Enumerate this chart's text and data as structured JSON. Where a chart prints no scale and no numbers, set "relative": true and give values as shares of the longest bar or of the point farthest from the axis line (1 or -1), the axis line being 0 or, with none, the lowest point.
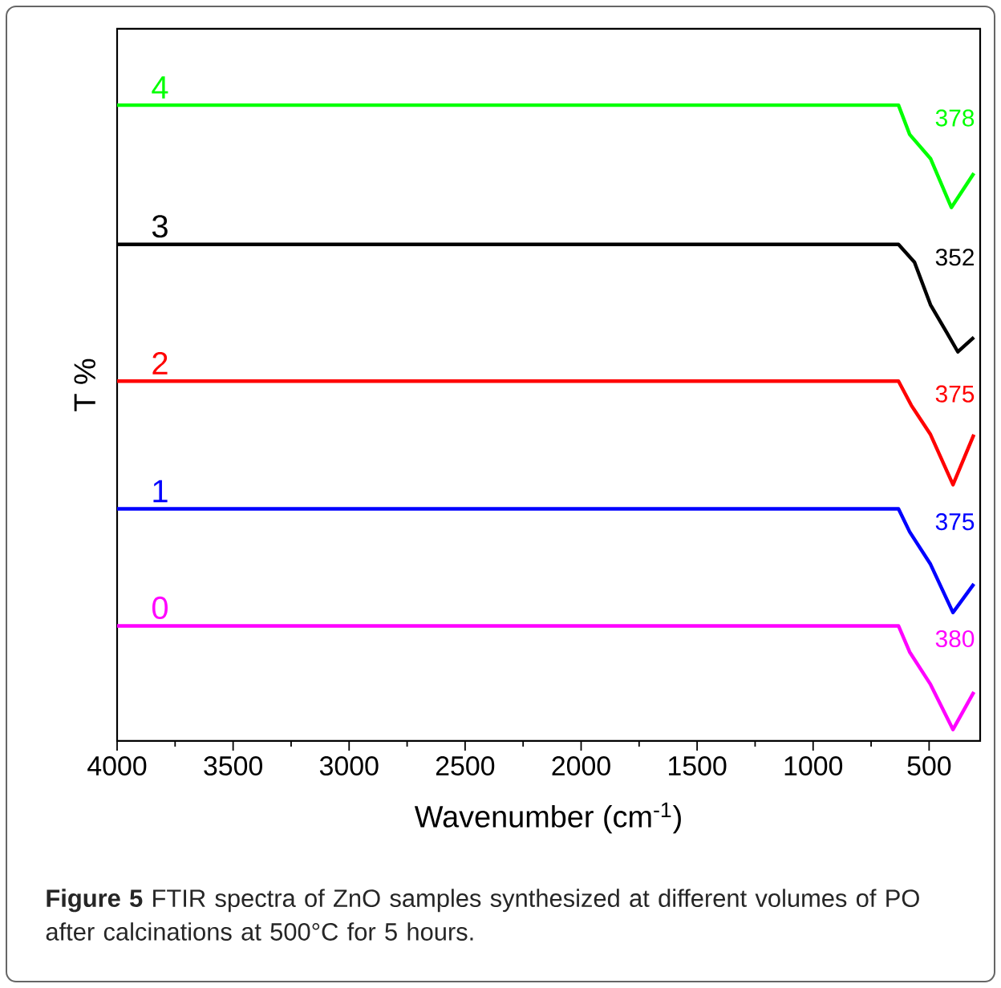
{
  "chart_data": {
    "type": "line",
    "xlabel": "Wavenumber (cm$^{-1}$)",
    "ylabel": "T %",
    "relative": true,
    "xlim": [
      4000,
      280
    ],
    "xticks": [
      4000,
      3500,
      3000,
      2500,
      2000,
      1500,
      1000,
      500
    ],
    "series": [
      {
        "name": "4",
        "color": "#00ff00",
        "x": [
          4000,
          632,
          584,
          494,
          404,
          307
        ],
        "values": [
          1.0,
          1.0,
          0.954,
          0.916,
          0.839,
          0.893
        ]
      },
      {
        "name": "3",
        "color": "#000000",
        "x": [
          4000,
          632,
          563,
          494,
          425,
          376,
          307
        ],
        "values": [
          0.781,
          0.781,
          0.753,
          0.686,
          0.643,
          0.612,
          0.635
        ]
      },
      {
        "name": "2",
        "color": "#ff0000",
        "x": [
          4000,
          632,
          577,
          494,
          397,
          307
        ],
        "values": [
          0.566,
          0.566,
          0.528,
          0.482,
          0.403,
          0.482
        ]
      },
      {
        "name": "1",
        "color": "#0000ff",
        "x": [
          4000,
          632,
          584,
          494,
          397,
          307
        ],
        "values": [
          0.365,
          0.365,
          0.329,
          0.278,
          0.202,
          0.247
        ]
      },
      {
        "name": "0",
        "color": "#ff00ff",
        "x": [
          4000,
          632,
          584,
          494,
          397,
          307
        ],
        "values": [
          0.181,
          0.181,
          0.14,
          0.089,
          0.018,
          0.077
        ]
      }
    ],
    "annotations": [
      "378",
      "352",
      "375",
      "375",
      "380",
      "**Figure 5** FTIR spectra of ZnO samples synthesized at different volumes of PO after calcinations at 500°C for 5 hours."
    ]
  }
}
